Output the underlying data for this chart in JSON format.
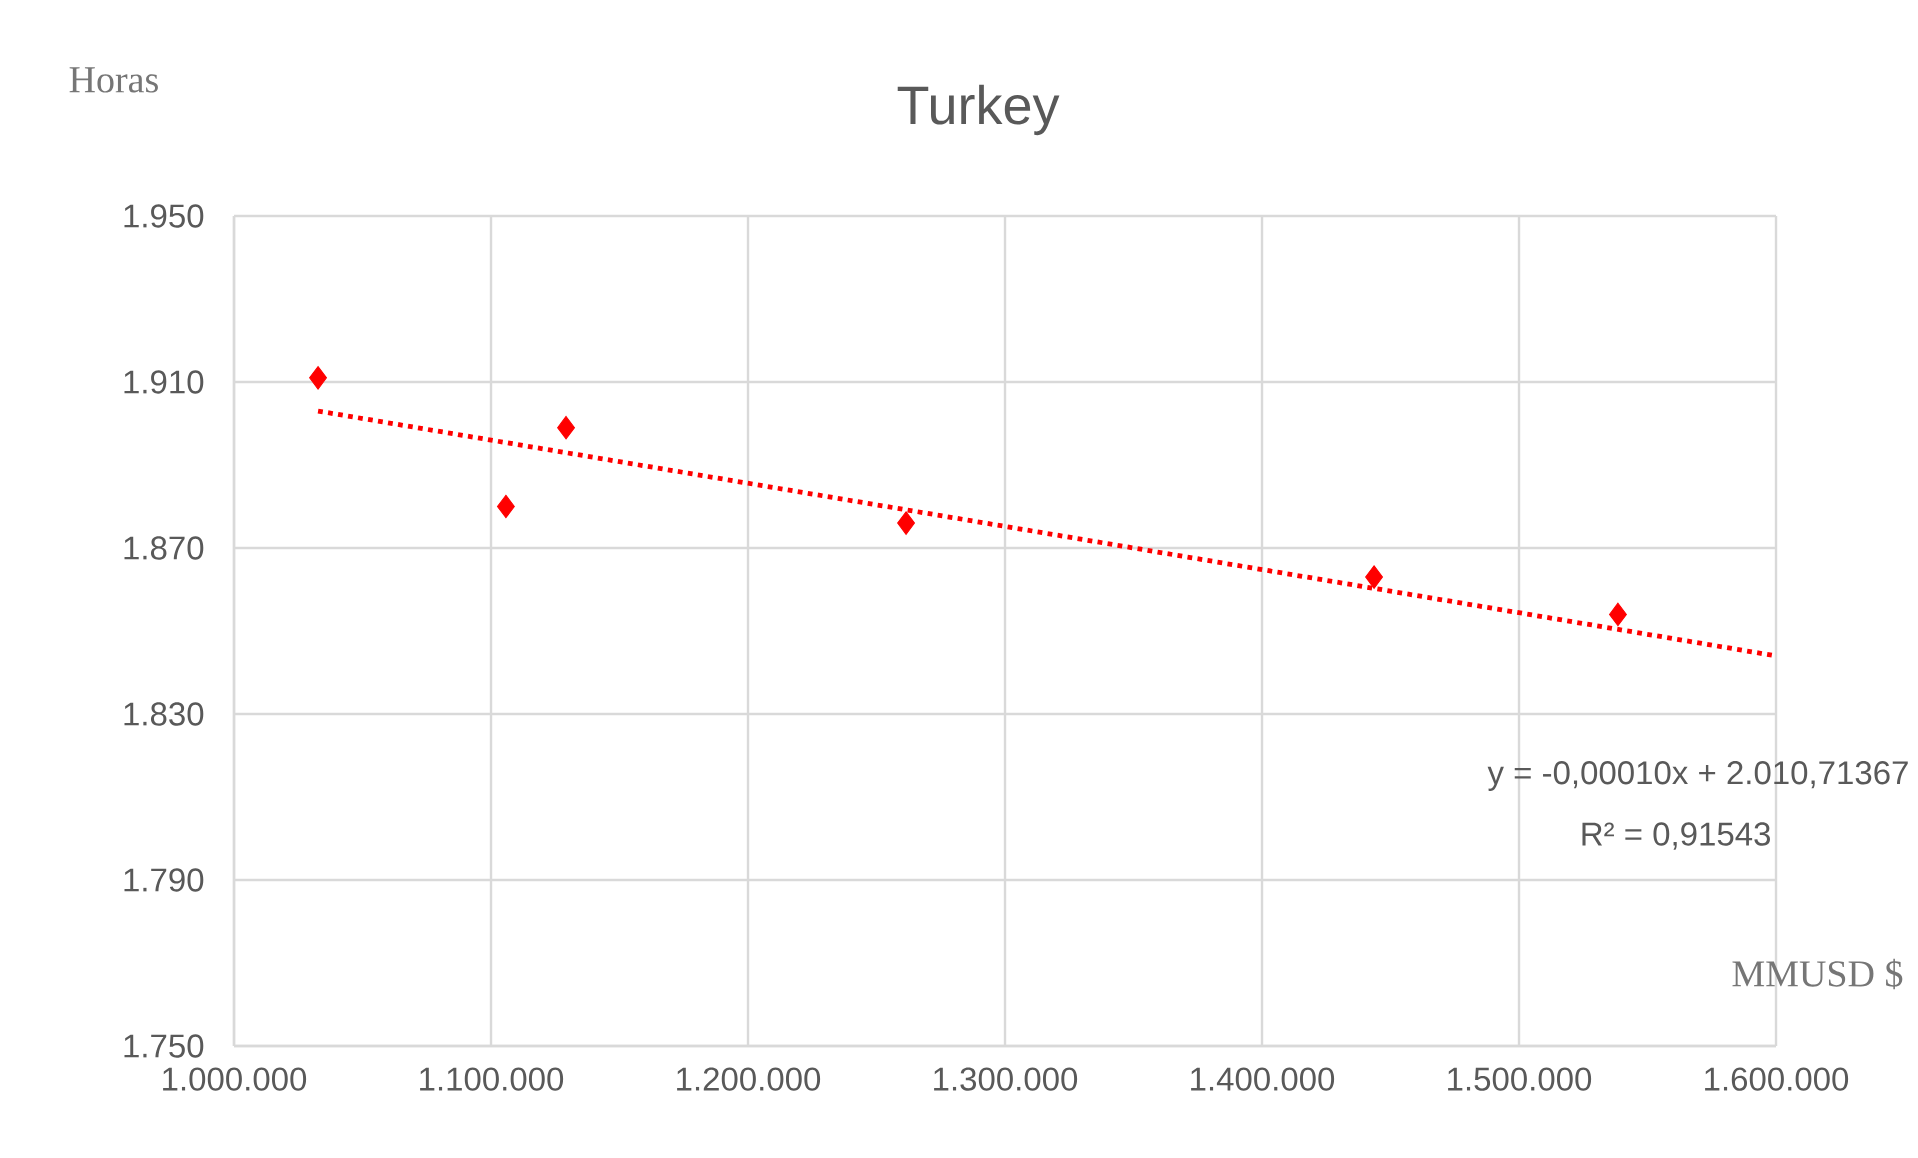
{
  "chart_data": {
    "type": "scatter",
    "title": "Turkey",
    "xlabel": "MMUSD $",
    "ylabel": "Horas",
    "xlim": [
      1000000,
      1600000
    ],
    "xticks": [
      {
        "value": 1000000,
        "label": "1.000.000"
      },
      {
        "value": 1100000,
        "label": "1.100.000"
      },
      {
        "value": 1200000,
        "label": "1.200.000"
      },
      {
        "value": 1300000,
        "label": "1.300.000"
      },
      {
        "value": 1400000,
        "label": "1.400.000"
      },
      {
        "value": 1500000,
        "label": "1.500.000"
      },
      {
        "value": 1600000,
        "label": "1.600.000"
      }
    ],
    "ylim": [
      1750,
      1950
    ],
    "yticks": [
      {
        "value": 1750,
        "label": "1.750"
      },
      {
        "value": 1790,
        "label": "1.790"
      },
      {
        "value": 1830,
        "label": "1.830"
      },
      {
        "value": 1870,
        "label": "1.870"
      },
      {
        "value": 1910,
        "label": "1.910"
      },
      {
        "value": 1950,
        "label": "1.950"
      }
    ],
    "grid": true,
    "series": [
      {
        "color": "#ff0000",
        "marker": "diamond",
        "x": [
          1032700,
          1105800,
          1129200,
          1261500,
          1443600,
          1538500
        ],
        "values": [
          1911,
          1880,
          1899,
          1876,
          1863,
          1854
        ]
      },
      {
        "type": "line",
        "color": "#ff0000",
        "marker": "none",
        "line_style": "dotted",
        "x": [
          1032700,
          1600000
        ],
        "values": [
          1903,
          1844
        ]
      }
    ],
    "annotations": [
      "y = -0,00010x + 2.010,71367",
      "R² = 0,91543"
    ]
  }
}
